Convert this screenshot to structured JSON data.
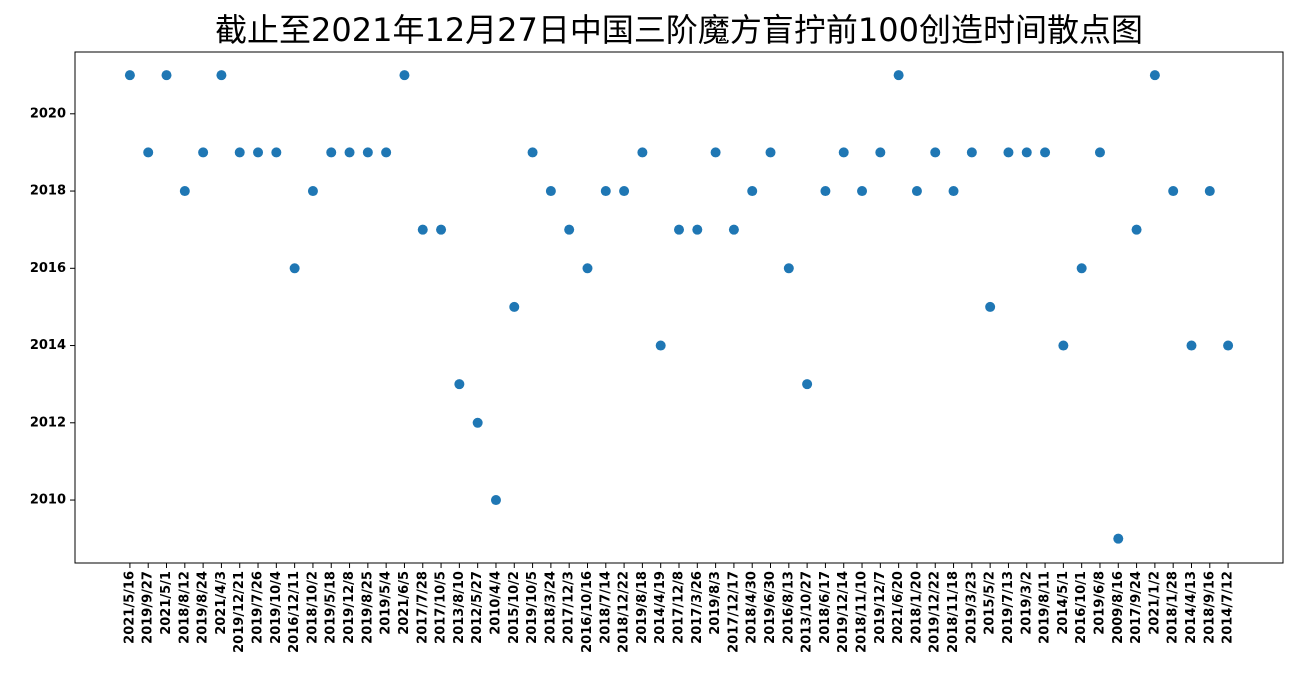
{
  "chart_data": {
    "type": "scatter",
    "title": "截止至2021年12月27日中国三阶魔方盲拧前100创造时间散点图",
    "categories": [
      "2021/5/16",
      "2019/9/27",
      "2021/5/1",
      "2018/8/12",
      "2019/8/24",
      "2021/4/3",
      "2019/12/21",
      "2019/7/26",
      "2019/10/4",
      "2016/12/11",
      "2018/10/2",
      "2019/5/18",
      "2019/12/8",
      "2019/8/25",
      "2019/5/4",
      "2021/6/5",
      "2017/7/28",
      "2017/10/5",
      "2013/8/10",
      "2012/5/27",
      "2010/4/4",
      "2015/10/2",
      "2019/10/5",
      "2018/3/24",
      "2017/12/3",
      "2016/10/16",
      "2018/7/14",
      "2018/12/22",
      "2019/8/18",
      "2014/4/19",
      "2017/12/8",
      "2017/3/26",
      "2019/8/3",
      "2017/12/17",
      "2018/4/30",
      "2019/6/30",
      "2016/8/13",
      "2013/10/27",
      "2018/6/17",
      "2019/12/14",
      "2018/11/10",
      "2019/12/7",
      "2021/6/20",
      "2018/1/20",
      "2019/12/22",
      "2018/11/18",
      "2019/3/23",
      "2015/5/2",
      "2019/7/13",
      "2019/3/2",
      "2019/8/11",
      "2014/5/1",
      "2016/10/1",
      "2019/6/8",
      "2009/8/16",
      "2017/9/24",
      "2021/1/2",
      "2018/1/28",
      "2014/4/13",
      "2018/9/16",
      "2014/7/12"
    ],
    "values": [
      2021,
      2019,
      2021,
      2018,
      2019,
      2021,
      2019,
      2019,
      2019,
      2016,
      2018,
      2019,
      2019,
      2019,
      2019,
      2021,
      2017,
      2017,
      2013,
      2012,
      2010,
      2015,
      2019,
      2018,
      2017,
      2016,
      2018,
      2018,
      2019,
      2014,
      2017,
      2017,
      2019,
      2017,
      2018,
      2019,
      2016,
      2013,
      2018,
      2019,
      2018,
      2019,
      2021,
      2018,
      2019,
      2018,
      2019,
      2015,
      2019,
      2019,
      2019,
      2014,
      2016,
      2019,
      2009,
      2017,
      2021,
      2018,
      2014,
      2018,
      2014
    ],
    "color": "#1f77b4",
    "ylim": [
      2008.37,
      2021.6
    ],
    "yticks": [
      2010,
      2012,
      2014,
      2016,
      2018,
      2020
    ],
    "grid": false
  }
}
